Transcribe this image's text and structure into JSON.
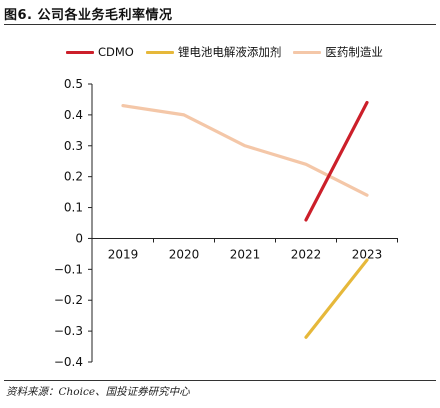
{
  "figure": {
    "title": "图6. 公司各业务毛利率情况",
    "source": "资料来源：Choice、国投证券研究中心"
  },
  "colors": {
    "CDMO": "#cc1f2a",
    "battery": "#e6b83a",
    "pharma": "#f4c7a8",
    "axis": "#222222"
  },
  "chart_data": {
    "type": "line",
    "x": [
      "2019",
      "2020",
      "2021",
      "2022",
      "2023"
    ],
    "ylim": [
      -0.4,
      0.5
    ],
    "yticks": [
      "0.5",
      "0.4",
      "0.3",
      "0.2",
      "0.1",
      "0",
      "−0.1",
      "−0.2",
      "−0.3",
      "−0.4"
    ],
    "grid": false,
    "legend_position": "top",
    "series": [
      {
        "name": "CDMO",
        "color_key": "CDMO",
        "values": [
          null,
          null,
          null,
          0.06,
          0.44
        ]
      },
      {
        "name": "锂电池电解液添加剂",
        "color_key": "battery",
        "values": [
          null,
          null,
          null,
          -0.32,
          -0.07
        ]
      },
      {
        "name": "医药制造业",
        "color_key": "pharma",
        "values": [
          0.43,
          0.4,
          0.3,
          0.24,
          0.14
        ]
      }
    ]
  }
}
